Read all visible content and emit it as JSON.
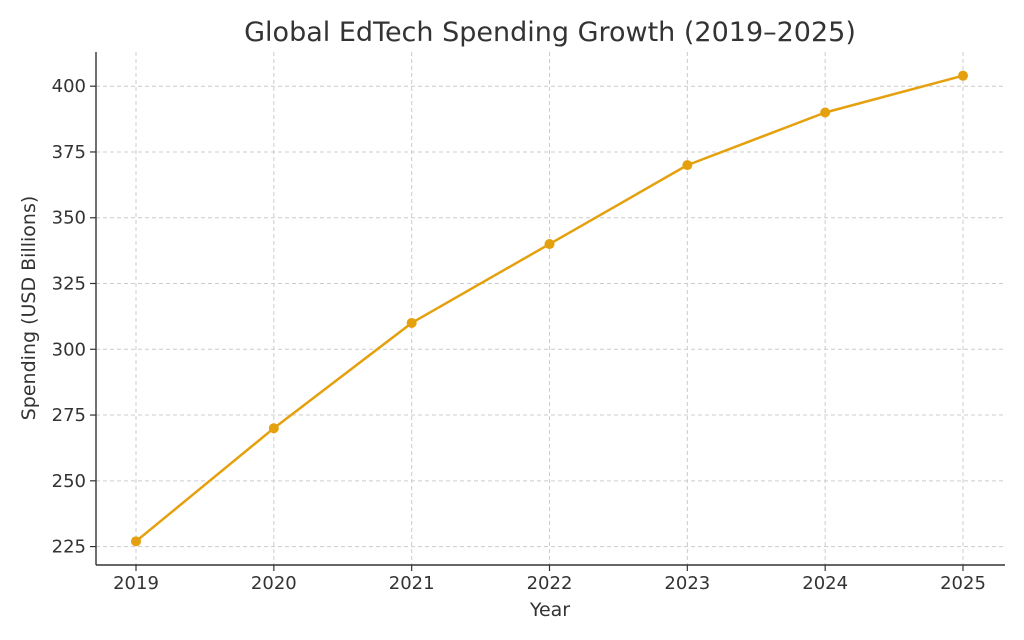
{
  "chart_data": {
    "type": "line",
    "title": "Global EdTech Spending Growth (2019–2025)",
    "xlabel": "Year",
    "ylabel": "Spending (USD Billions)",
    "x": [
      "2019",
      "2020",
      "2021",
      "2022",
      "2023",
      "2024",
      "2025"
    ],
    "series": [
      {
        "values": [
          227,
          270,
          310,
          340,
          370,
          390,
          404
        ],
        "color": "#E5A00D"
      }
    ],
    "yticks": [
      225,
      250,
      275,
      300,
      325,
      350,
      375,
      400
    ],
    "ylim": [
      218,
      413
    ],
    "grid": true,
    "marker": "circle"
  }
}
